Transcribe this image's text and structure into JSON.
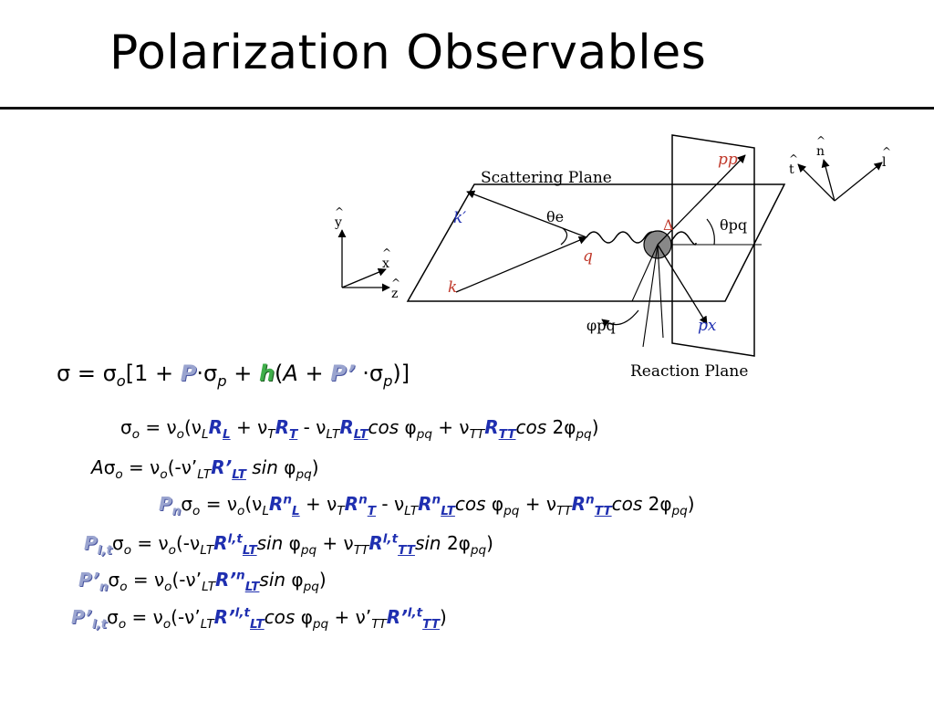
{
  "title": "Polarization Observables",
  "diagram": {
    "scattering_plane": "Scattering Plane",
    "reaction_plane": "Reaction Plane",
    "k_prime": "k′",
    "k": "k",
    "q": "q",
    "theta_e": "θe",
    "theta_pq": "θpq",
    "phi_pq": "φpq",
    "delta": "Δ",
    "p_p": "pp",
    "p_x": "px",
    "axes_left": [
      "y",
      "x",
      "z"
    ],
    "axes_right": [
      "t",
      "n",
      "l"
    ]
  },
  "colors": {
    "polarization_symbol": "#9aa4cf",
    "helicity_symbol": "#3fae4a",
    "response_blue": "#1f2fb0",
    "kinematic_red": "#c0392b"
  }
}
